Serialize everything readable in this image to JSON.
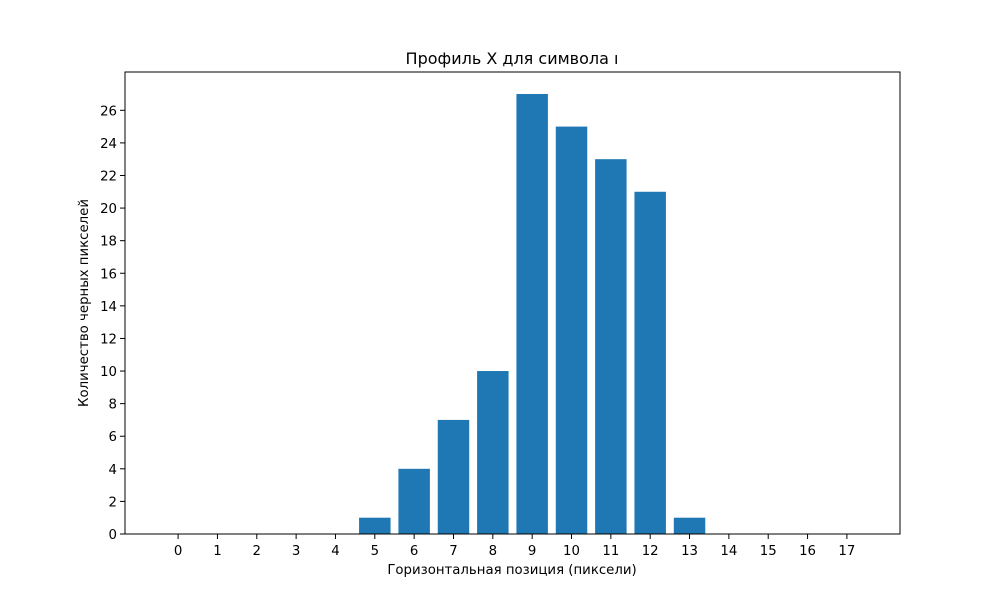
{
  "chart_data": {
    "type": "bar",
    "title": "Профиль X для символа ı",
    "xlabel": "Горизонтальная позиция (пиксели)",
    "ylabel": "Количество черных пикселей",
    "categories": [
      "0",
      "1",
      "2",
      "3",
      "4",
      "5",
      "6",
      "7",
      "8",
      "9",
      "10",
      "11",
      "12",
      "13",
      "14",
      "15",
      "16",
      "17"
    ],
    "values": [
      0,
      0,
      0,
      0,
      0,
      1,
      4,
      7,
      10,
      27,
      25,
      23,
      21,
      1,
      0,
      0,
      0,
      0
    ],
    "yticks": [
      0,
      2,
      4,
      6,
      8,
      10,
      12,
      14,
      16,
      18,
      20,
      22,
      24,
      26
    ],
    "ylim": [
      0,
      28.35
    ],
    "xlim": [
      -1.35,
      18.35
    ],
    "grid": false,
    "bar_color": "#1f77b4"
  }
}
